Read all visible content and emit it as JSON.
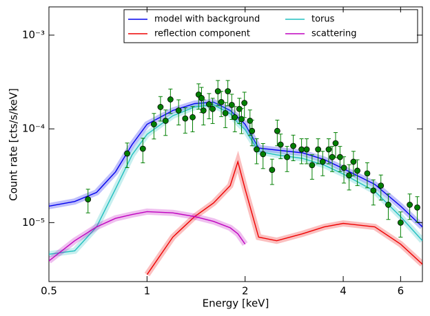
{
  "chart_data": {
    "type": "line",
    "xscale": "log",
    "yscale": "log",
    "xlabel": "Energy [keV]",
    "ylabel": "Count rate [cts/s/keV]",
    "xlim": [
      0.5,
      7
    ],
    "ylim": [
      2.35e-06,
      0.002
    ],
    "xticks": [
      0.5,
      1,
      2,
      4,
      6
    ],
    "yticks": [
      {
        "value": 1e-05,
        "label": "10⁻⁵"
      },
      {
        "value": 0.0001,
        "label": "10⁻⁴"
      },
      {
        "value": 0.001,
        "label": "10⁻³"
      }
    ],
    "legend": "upper right",
    "x": [
      0.5,
      0.6,
      0.7,
      0.8,
      0.9,
      1.0,
      1.2,
      1.4,
      1.6,
      1.8,
      1.9,
      2.0,
      2.2,
      2.5,
      3.0,
      3.5,
      4.0,
      5.0,
      6.0,
      7.0
    ],
    "series": [
      {
        "name": "model with background",
        "color": "#0000ee",
        "values": [
          1.5e-05,
          1.68e-05,
          2.1e-05,
          3.47e-05,
          6.8e-05,
          0.000112,
          0.000157,
          0.000186,
          0.000193,
          0.000157,
          0.000133,
          0.000112,
          6.25e-05,
          5.94e-05,
          5.55e-05,
          4.7e-05,
          3.77e-05,
          2.56e-05,
          1.5e-05,
          9e-06
        ]
      },
      {
        "name": "torus",
        "color": "#1fbfbf",
        "values": [
          4.6e-06,
          5e-06,
          9e-06,
          2.28e-05,
          5.28e-05,
          8.74e-05,
          0.000138,
          0.000171,
          0.00018,
          0.000145,
          0.000116,
          9.8e-05,
          5.75e-05,
          5.28e-05,
          4.85e-05,
          4.1e-05,
          3.3e-05,
          2.16e-05,
          1.16e-05,
          6.4e-06
        ]
      },
      {
        "name": "reflection component",
        "color": "#ee0000",
        "values": [
          null,
          null,
          null,
          null,
          null,
          2.79e-06,
          7e-06,
          1.16e-05,
          1.62e-05,
          2.48e-05,
          4.46e-05,
          2.28e-05,
          7e-06,
          6.4e-06,
          7.6e-06,
          9e-06,
          9.8e-06,
          9e-06,
          5.9e-06,
          3.6e-06
        ]
      },
      {
        "name": "scattering",
        "color": "#bf00bf",
        "values": [
          3.9e-06,
          6.4e-06,
          9e-06,
          1.11e-05,
          1.22e-05,
          1.31e-05,
          1.27e-05,
          1.16e-05,
          1.03e-05,
          8.8e-06,
          7.6e-06,
          5.9e-06,
          null,
          null,
          null,
          null,
          null,
          null,
          null,
          null
        ]
      }
    ],
    "points": {
      "color": "#007f00",
      "x": [
        0.659,
        0.869,
        0.971,
        1.05,
        1.1,
        1.14,
        1.18,
        1.25,
        1.31,
        1.38,
        1.44,
        1.47,
        1.49,
        1.55,
        1.59,
        1.65,
        1.69,
        1.74,
        1.77,
        1.82,
        1.86,
        1.92,
        1.95,
        1.99,
        2.07,
        2.1,
        2.17,
        2.27,
        2.42,
        2.51,
        2.57,
        2.69,
        2.81,
        2.98,
        3.09,
        3.21,
        3.35,
        3.46,
        3.61,
        3.7,
        3.79,
        3.91,
        4.02,
        4.17,
        4.3,
        4.42,
        4.74,
        4.95,
        5.22,
        5.5,
        6.0,
        6.4,
        6.75
      ],
      "y": [
        1.77e-05,
        5.46e-05,
        6.14e-05,
        0.000112,
        0.000171,
        0.000122,
        0.000206,
        0.000157,
        0.000129,
        0.000133,
        0.000232,
        0.000213,
        0.000157,
        0.000183,
        0.000163,
        0.000252,
        0.000193,
        0.000147,
        0.000252,
        0.00018,
        0.000133,
        0.000163,
        0.000127,
        0.000189,
        0.000122,
        9.5e-05,
        6.04e-05,
        5.37e-05,
        3.65e-05,
        9.5e-05,
        6.8e-05,
        5e-05,
        6.57e-05,
        6.04e-05,
        6.04e-05,
        4.1e-05,
        6.04e-05,
        4.46e-05,
        6.04e-05,
        5e-05,
        7.03e-05,
        5e-05,
        3.84e-05,
        3.19e-05,
        4.46e-05,
        3.58e-05,
        3.35e-05,
        2.2e-05,
        2.48e-05,
        1.55e-05,
        1e-05,
        1.55e-05,
        1.45e-05
      ],
      "yerr": [
        5e-06,
        1.6e-05,
        1.8e-05,
        3.4e-05,
        5e-05,
        3.7e-05,
        6e-05,
        4.7e-05,
        3.9e-05,
        4e-05,
        7e-05,
        6.4e-05,
        4.7e-05,
        5.5e-05,
        4.9e-05,
        7.6e-05,
        5.8e-05,
        4.4e-05,
        7.6e-05,
        5.4e-05,
        4e-05,
        4.9e-05,
        3.8e-05,
        5.7e-05,
        3.7e-05,
        2.9e-05,
        1.8e-05,
        1.6e-05,
        1.1e-05,
        2.9e-05,
        2e-05,
        1.5e-05,
        2e-05,
        1.8e-05,
        1.8e-05,
        1.2e-05,
        1.8e-05,
        1.3e-05,
        1.8e-05,
        1.5e-05,
        2.1e-05,
        1.5e-05,
        1.2e-05,
        9.6e-06,
        1.3e-05,
        1.1e-05,
        1e-05,
        6.6e-06,
        7.4e-06,
        4.7e-06,
        3e-06,
        4.7e-06,
        4.4e-06
      ]
    }
  }
}
